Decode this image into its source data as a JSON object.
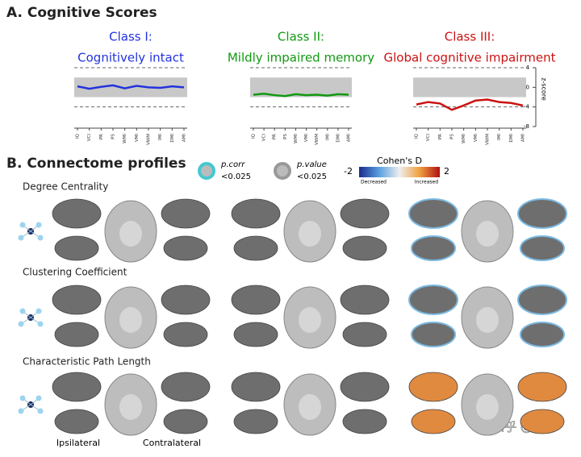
{
  "panel_a_title": "A. Cognitive Scores",
  "chart_data": [
    {
      "type": "line",
      "title": "Class I:",
      "subtitle": "Cognitively intact",
      "categories": [
        "IQ",
        "VCI",
        "PR",
        "PS",
        "WMI",
        "VMI",
        "VWM",
        "IMI",
        "DMI",
        "AMI"
      ],
      "series": [
        {
          "color": "#2233dd",
          "values": [
            0.2,
            -0.3,
            0.1,
            0.4,
            -0.2,
            0.3,
            0,
            -0.1,
            0.2,
            0
          ]
        }
      ],
      "ylim": [
        -8,
        4
      ],
      "band": [
        -2,
        2
      ],
      "reference_lines": [
        4,
        -4
      ]
    },
    {
      "type": "line",
      "title": "Class II:",
      "subtitle": "Mildly impaired memory",
      "categories": [
        "IQ",
        "VCI",
        "PR",
        "PS",
        "WMI",
        "VMI",
        "VWM",
        "IMI",
        "DMI",
        "AMI"
      ],
      "series": [
        {
          "color": "#119911",
          "values": [
            -1.5,
            -1.3,
            -1.6,
            -1.8,
            -1.4,
            -1.6,
            -1.5,
            -1.7,
            -1.4,
            -1.5
          ]
        }
      ],
      "ylim": [
        -8,
        4
      ],
      "band": [
        -2,
        2
      ],
      "reference_lines": [
        4,
        -4
      ]
    },
    {
      "type": "line",
      "title": "Class III:",
      "subtitle": "Global cognitive impairment",
      "categories": [
        "IQ",
        "VCI",
        "PR",
        "PS",
        "WMI",
        "VMI",
        "VWM",
        "IMI",
        "DMI",
        "AMI"
      ],
      "series": [
        {
          "color": "#cc1111",
          "values": [
            -3.5,
            -3,
            -3.3,
            -4.6,
            -3.7,
            -2.7,
            -2.5,
            -3,
            -3.2,
            -3.7
          ]
        }
      ],
      "ylim": [
        -8,
        4
      ],
      "yticks": [
        4,
        0,
        -4,
        -8
      ],
      "ylabel": "z-score",
      "band": [
        -2,
        2
      ],
      "reference_lines": [
        4,
        -4
      ]
    }
  ],
  "panel_b": {
    "title": "B. Connectome profiles",
    "legend": [
      {
        "label": "p.corr",
        "sub": "<0.025"
      },
      {
        "label": "p.value",
        "sub": "<0.025"
      }
    ],
    "colorbar": {
      "title": "Cohen's D",
      "min": -2,
      "max": 2,
      "low_label": "Decreased",
      "high_label": "Increased"
    },
    "rows": [
      "Degree  Centrality",
      "Clustering Coefficient",
      "Characteristic Path Length"
    ],
    "footer": [
      "Ipsilateral",
      "Contralateral"
    ]
  },
  "watermark": "知乎 @思影"
}
